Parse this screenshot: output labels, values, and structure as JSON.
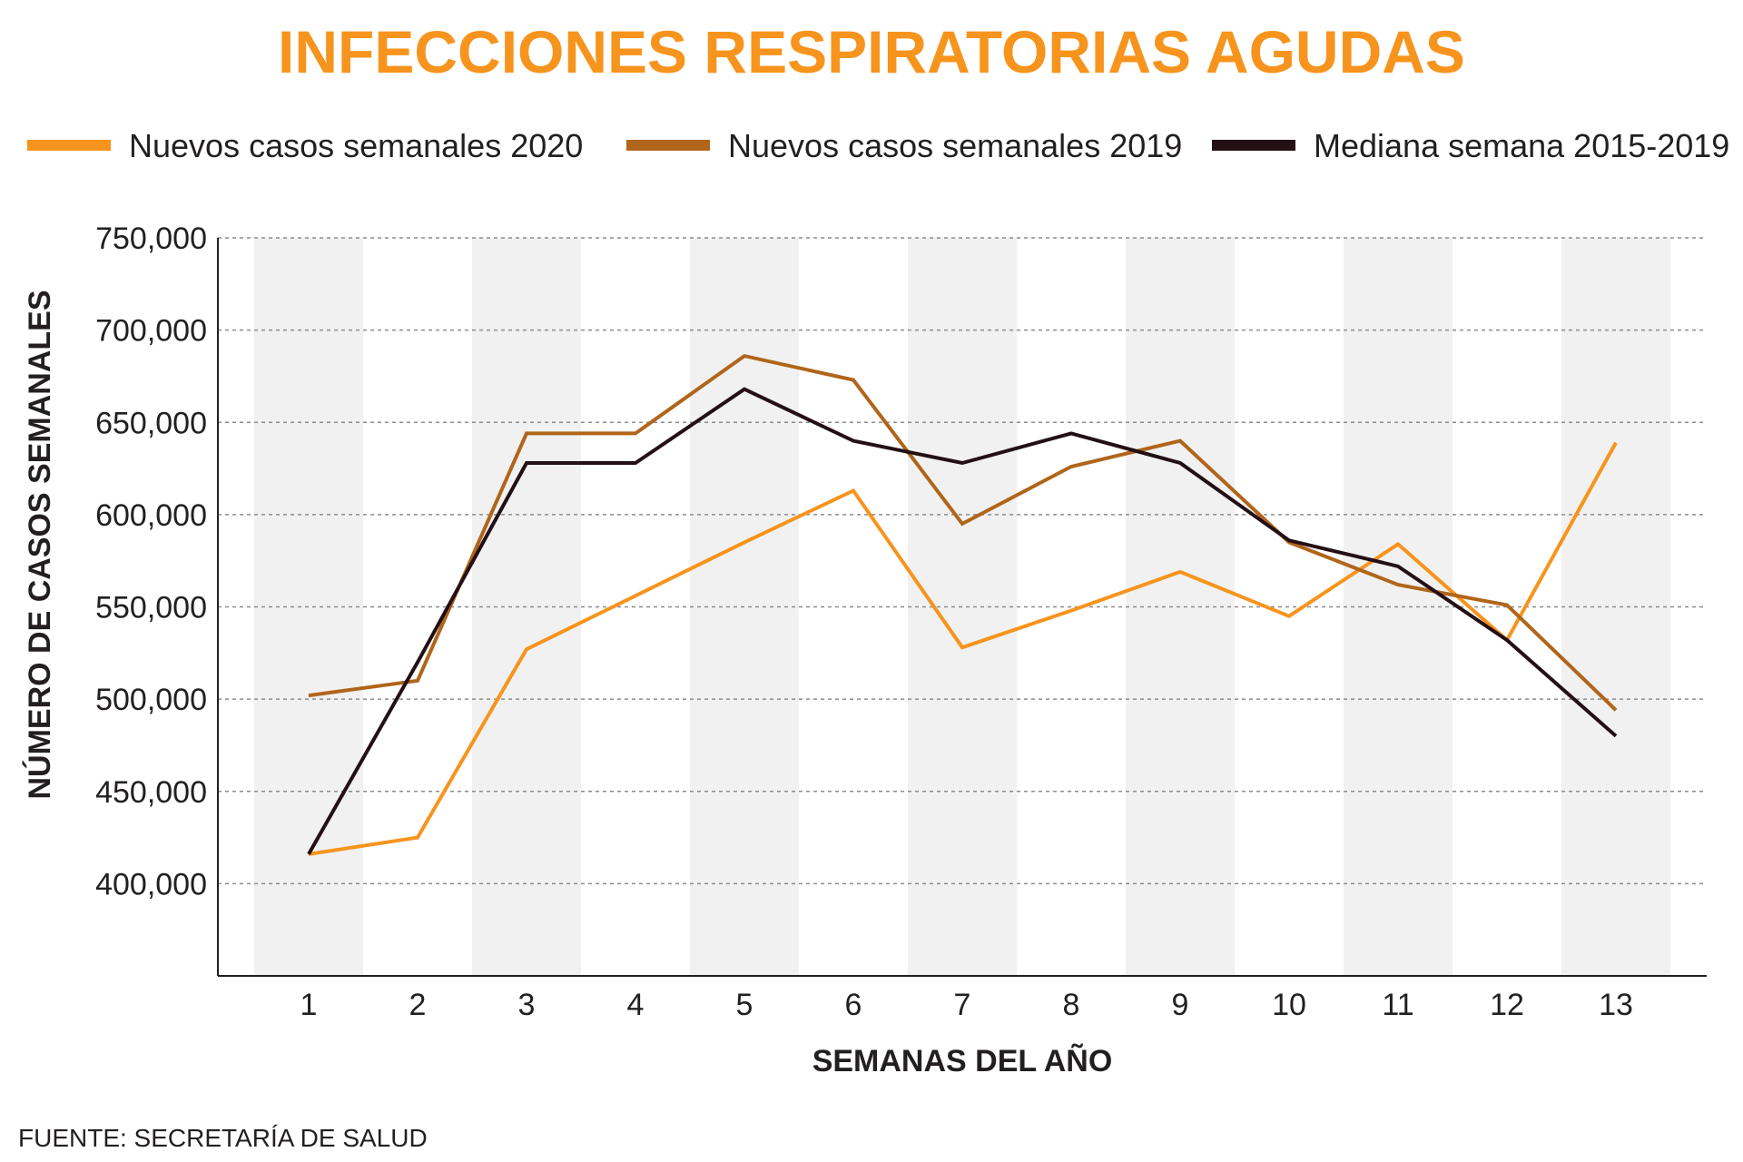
{
  "chart_data": {
    "type": "line",
    "title": "INFECCIONES RESPIRATORIAS AGUDAS",
    "xlabel": "SEMANAS DEL AÑO",
    "ylabel": "NÚMERO DE CASOS SEMANALES",
    "source": "FUENTE: SECRETARÍA DE SALUD",
    "categories": [
      "1",
      "2",
      "3",
      "4",
      "5",
      "6",
      "7",
      "8",
      "9",
      "10",
      "11",
      "12",
      "13"
    ],
    "ylim": [
      350000,
      750000
    ],
    "yticks": [
      400000,
      450000,
      500000,
      550000,
      600000,
      650000,
      700000,
      750000
    ],
    "ytick_labels": [
      "400,000",
      "450,000",
      "500,000",
      "550,000",
      "600,000",
      "650,000",
      "700,000",
      "750,000"
    ],
    "grid": true,
    "legend_position": "top",
    "series": [
      {
        "name": "Nuevos casos semanales 2020",
        "color": "#f7941d",
        "values": [
          416000,
          425000,
          527000,
          556000,
          585000,
          613000,
          528000,
          548000,
          569000,
          545000,
          584000,
          532000,
          639000
        ]
      },
      {
        "name": "Nuevos casos semanales 2019",
        "color": "#b0651a",
        "values": [
          502000,
          510000,
          644000,
          644000,
          686000,
          673000,
          595000,
          626000,
          640000,
          585000,
          562000,
          551000,
          494000
        ]
      },
      {
        "name": "Mediana semana 2015-2019",
        "color": "#231015",
        "values": [
          416000,
          520000,
          628000,
          628000,
          668000,
          640000,
          628000,
          644000,
          628000,
          586000,
          572000,
          532000,
          480000
        ]
      }
    ]
  }
}
